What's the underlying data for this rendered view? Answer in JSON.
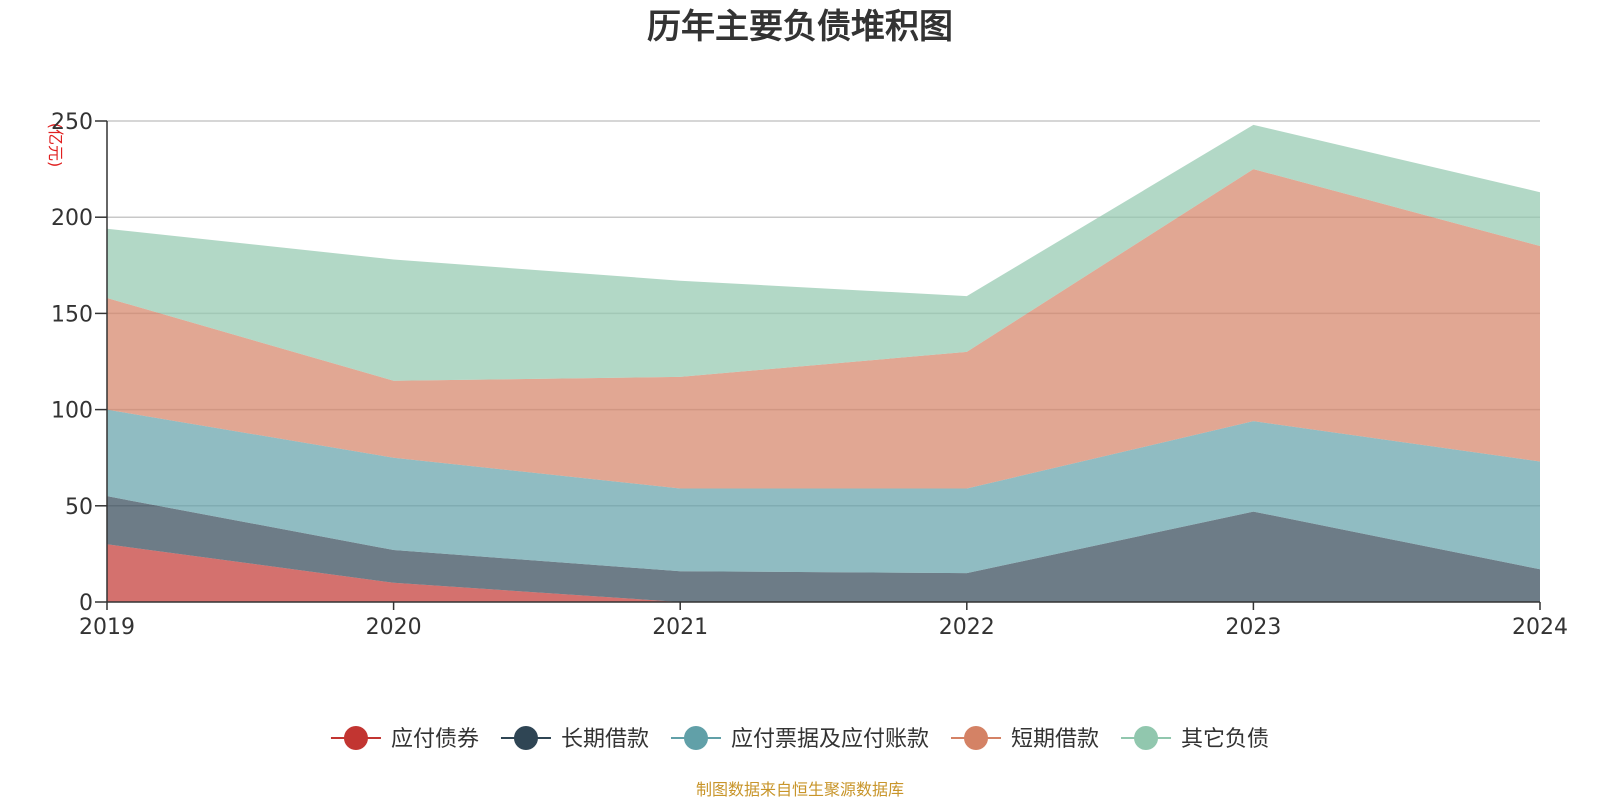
{
  "chart_data": {
    "type": "area",
    "stacked": true,
    "title": "历年主要负债堆积图",
    "unit_label": "(亿元)",
    "source_note": "制图数据来自恒生聚源数据库",
    "categories": [
      "2019",
      "2020",
      "2021",
      "2022",
      "2023",
      "2024"
    ],
    "ylim": [
      0,
      250
    ],
    "yticks": [
      0,
      50,
      100,
      150,
      200,
      250
    ],
    "grid": true,
    "legend_position": "bottom",
    "series": [
      {
        "name": "应付债券",
        "color": "#c23531",
        "values": [
          30,
          10,
          0,
          0,
          0,
          0
        ]
      },
      {
        "name": "长期借款",
        "color": "#2f4554",
        "values": [
          25,
          17,
          16,
          15,
          47,
          17
        ]
      },
      {
        "name": "应付票据及应付账款",
        "color": "#61a0a8",
        "values": [
          45,
          48,
          43,
          44,
          47,
          56
        ]
      },
      {
        "name": "短期借款",
        "color": "#d48265",
        "values": [
          58,
          40,
          58,
          71,
          131,
          112
        ]
      },
      {
        "name": "其它负债",
        "color": "#91c7ae",
        "values": [
          36,
          63,
          50,
          29,
          23,
          28
        ]
      }
    ]
  }
}
